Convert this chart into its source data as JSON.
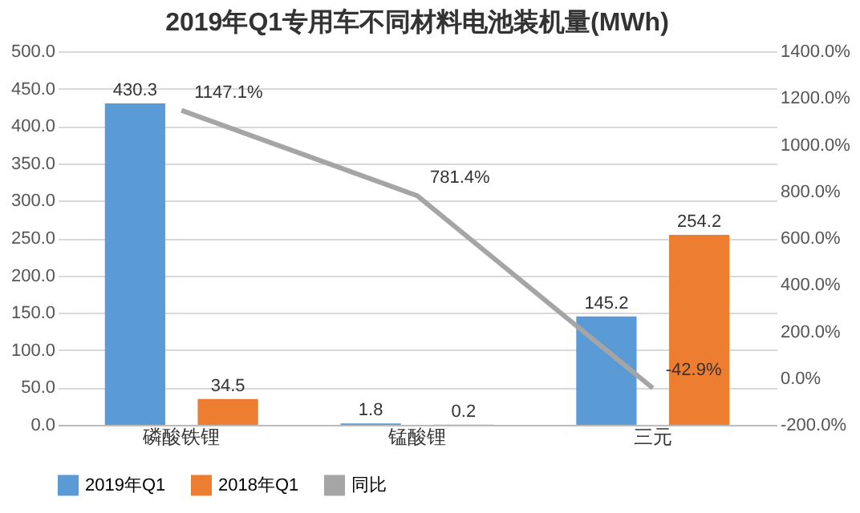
{
  "chart_data": {
    "type": "bar",
    "title": "2019年Q1专用车不同材料电池装机量(MWh)",
    "categories": [
      "磷酸铁锂",
      "锰酸锂",
      "三元"
    ],
    "series": [
      {
        "name": "2019年Q1",
        "color": "#5b9bd5",
        "values": [
          430.3,
          1.8,
          145.2
        ]
      },
      {
        "name": "2018年Q1",
        "color": "#ed7d31",
        "values": [
          34.5,
          0.2,
          254.2
        ]
      },
      {
        "name": "同比",
        "type": "line",
        "axis": "y2",
        "color": "#a5a5a5",
        "values": [
          1147.1,
          781.4,
          -42.9
        ],
        "value_labels": [
          "1147.1%",
          "781.4%",
          "-42.9%"
        ]
      }
    ],
    "data_labels": true,
    "ylim": [
      0,
      500
    ],
    "yticks": [
      {
        "value": 0,
        "label": "0.0"
      },
      {
        "value": 50,
        "label": "50.0"
      },
      {
        "value": 100,
        "label": "100.0"
      },
      {
        "value": 150,
        "label": "150.0"
      },
      {
        "value": 200,
        "label": "200.0"
      },
      {
        "value": 250,
        "label": "250.0"
      },
      {
        "value": 300,
        "label": "300.0"
      },
      {
        "value": 350,
        "label": "350.0"
      },
      {
        "value": 400,
        "label": "400.0"
      },
      {
        "value": 450,
        "label": "450.0"
      },
      {
        "value": 500,
        "label": "500.0"
      }
    ],
    "y2lim": [
      -200,
      1400
    ],
    "y2ticks": [
      {
        "value": -200,
        "label": "-200.0%"
      },
      {
        "value": 0,
        "label": "0.0%"
      },
      {
        "value": 200,
        "label": "200.0%"
      },
      {
        "value": 400,
        "label": "400.0%"
      },
      {
        "value": 600,
        "label": "600.0%"
      },
      {
        "value": 800,
        "label": "800.0%"
      },
      {
        "value": 1000,
        "label": "1000.0%"
      },
      {
        "value": 1200,
        "label": "1200.0%"
      },
      {
        "value": 1400,
        "label": "1400.0%"
      }
    ],
    "grid": "y",
    "legend": "bottom",
    "marker": "none",
    "line_style": "solid"
  }
}
